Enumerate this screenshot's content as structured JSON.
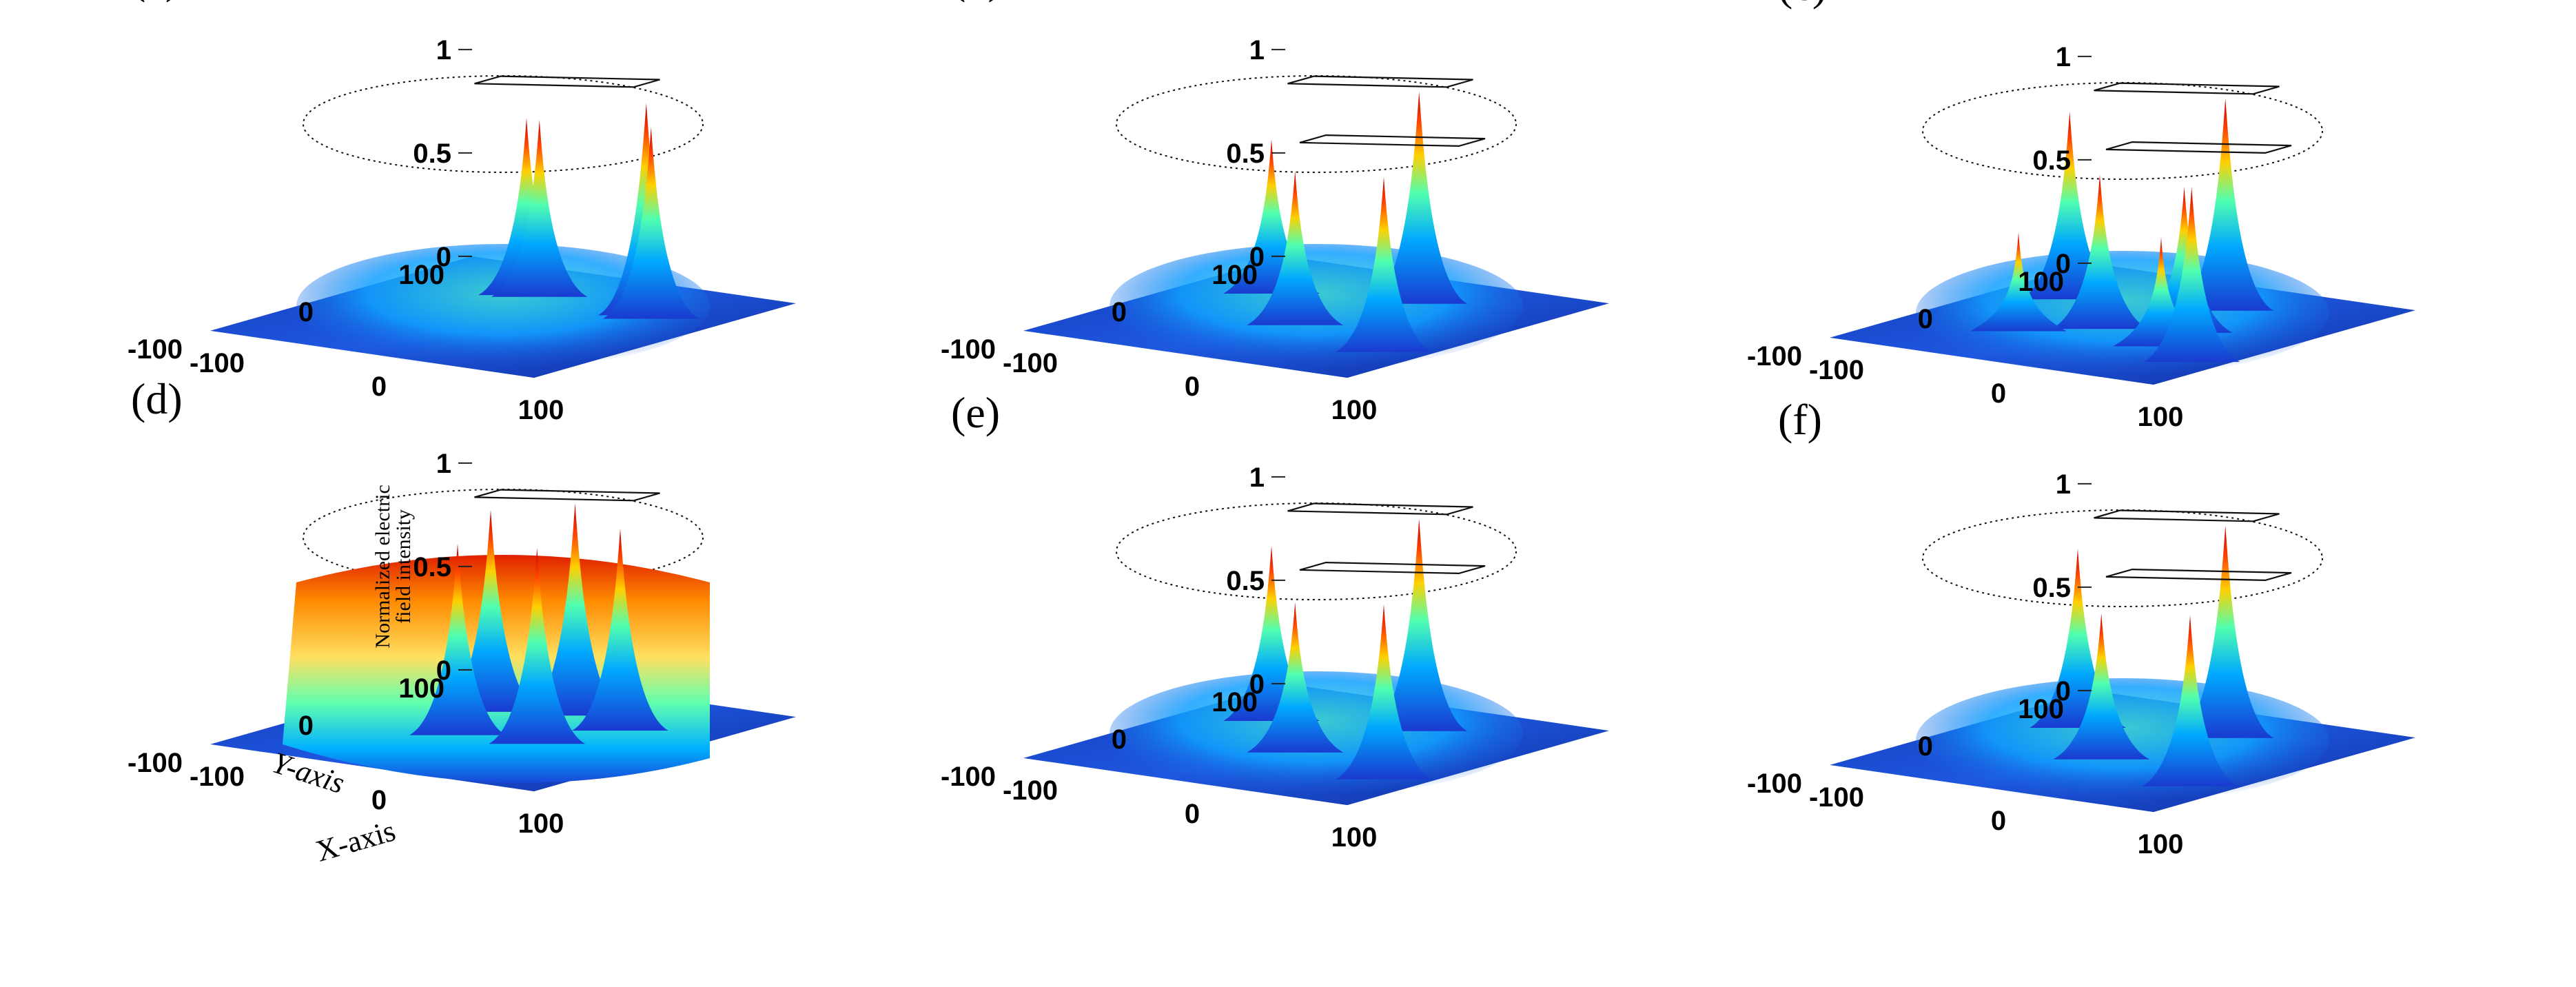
{
  "chart_data": [
    {
      "type": "surface",
      "panel": "(a)",
      "zlim": [
        0,
        1
      ],
      "zticks": [
        "0",
        "0.5",
        "1"
      ],
      "yticks": [
        "100",
        "0",
        "-100"
      ],
      "xticks": [
        "-100",
        "0",
        "100"
      ],
      "peaks": [
        {
          "x": -30,
          "y": 55,
          "z": 0.83
        },
        {
          "x": -22,
          "y": 55,
          "z": 0.83
        },
        {
          "x": 48,
          "y": 50,
          "z": 1.0
        },
        {
          "x": 55,
          "y": 45,
          "z": 0.9
        }
      ]
    },
    {
      "type": "surface",
      "panel": "(b)",
      "zlim": [
        0,
        1
      ],
      "zticks": [
        "0",
        "0.5",
        "1"
      ],
      "yticks": [
        "100",
        "0",
        "-100"
      ],
      "xticks": [
        "-100",
        "0",
        "100"
      ],
      "peaks": [
        {
          "x": -60,
          "y": 40,
          "z": 0.72
        },
        {
          "x": 15,
          "y": 60,
          "z": 1.0
        },
        {
          "x": -5,
          "y": -10,
          "z": 0.72
        },
        {
          "x": 70,
          "y": -35,
          "z": 0.82
        }
      ]
    },
    {
      "type": "surface",
      "panel": "(c)",
      "zlim": [
        0,
        1
      ],
      "zticks": [
        "0",
        "0.5",
        "1"
      ],
      "yticks": [
        "100",
        "0",
        "-100"
      ],
      "xticks": [
        "-100",
        "0",
        "100"
      ],
      "peaks": [
        {
          "x": -65,
          "y": 40,
          "z": 0.88
        },
        {
          "x": 15,
          "y": 60,
          "z": 1.0
        },
        {
          "x": -10,
          "y": -5,
          "z": 0.72
        },
        {
          "x": 30,
          "y": 10,
          "z": 0.68
        },
        {
          "x": -40,
          "y": -30,
          "z": 0.45
        },
        {
          "x": 40,
          "y": -20,
          "z": 0.5
        },
        {
          "x": 75,
          "y": -40,
          "z": 0.82
        }
      ]
    },
    {
      "type": "surface",
      "panel": "(d)",
      "zlim": [
        0,
        1
      ],
      "zticks": [
        "0",
        "0.5",
        "1"
      ],
      "yticks": [
        "100",
        "0",
        "-100"
      ],
      "xticks": [
        "-100",
        "0",
        "100"
      ],
      "zlabel": [
        "Normalized electric",
        "field intensity"
      ],
      "ylabel": "Y-axis",
      "xlabel": "X-axis",
      "peaks": [
        {
          "x": -40,
          "y": 40,
          "z": 0.95
        },
        {
          "x": 0,
          "y": 55,
          "z": 1.0
        },
        {
          "x": 40,
          "y": 40,
          "z": 0.95
        },
        {
          "x": -20,
          "y": -10,
          "z": 0.9
        },
        {
          "x": 25,
          "y": -5,
          "z": 0.92
        }
      ]
    },
    {
      "type": "surface",
      "panel": "(e)",
      "zlim": [
        0,
        1
      ],
      "zticks": [
        "0",
        "0.5",
        "1"
      ],
      "yticks": [
        "100",
        "0",
        "-100"
      ],
      "xticks": [
        "-100",
        "0",
        "100"
      ],
      "peaks": [
        {
          "x": -60,
          "y": 40,
          "z": 0.82
        },
        {
          "x": 15,
          "y": 60,
          "z": 1.0
        },
        {
          "x": -5,
          "y": -10,
          "z": 0.7
        },
        {
          "x": 70,
          "y": -35,
          "z": 0.82
        }
      ]
    },
    {
      "type": "surface",
      "panel": "(f)",
      "zlim": [
        0,
        1
      ],
      "zticks": [
        "0",
        "0.5",
        "1"
      ],
      "yticks": [
        "100",
        "0",
        "-100"
      ],
      "xticks": [
        "-100",
        "0",
        "100"
      ],
      "peaks": [
        {
          "x": -60,
          "y": 40,
          "z": 0.84
        },
        {
          "x": 15,
          "y": 60,
          "z": 1.0
        },
        {
          "x": -5,
          "y": -10,
          "z": 0.68
        },
        {
          "x": 70,
          "y": -35,
          "z": 0.8
        }
      ]
    }
  ]
}
